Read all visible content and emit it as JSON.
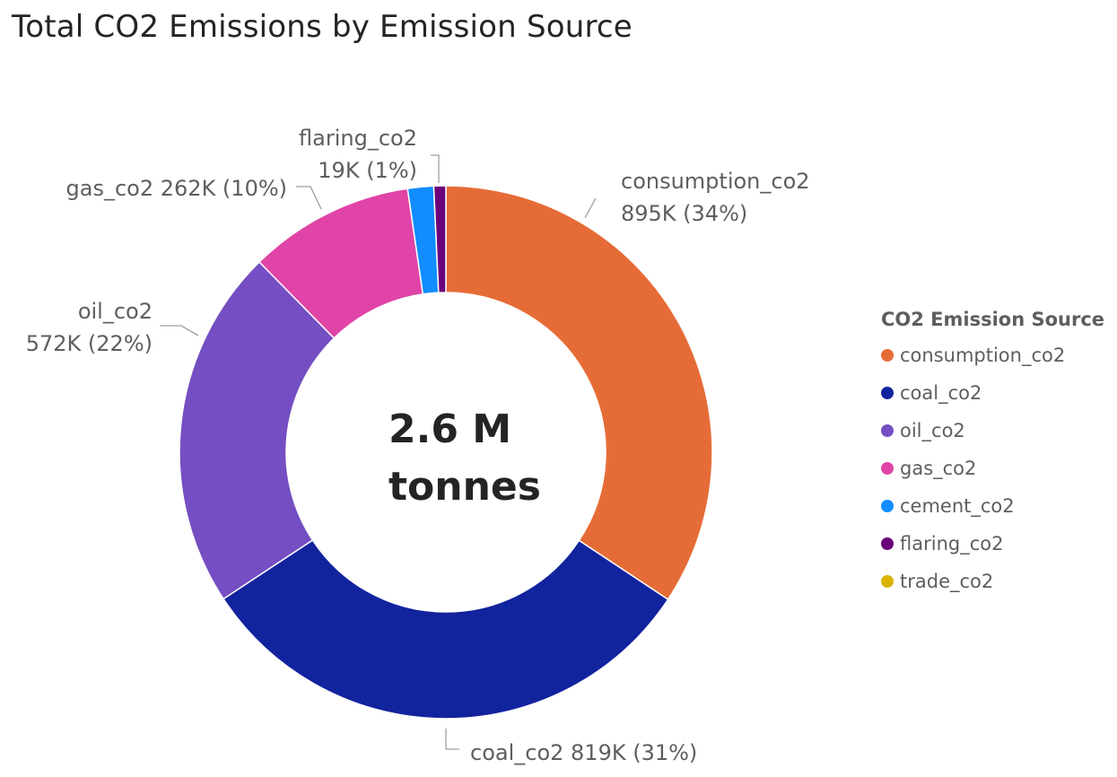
{
  "chart_data": {
    "type": "donut",
    "title": "Total CO2 Emissions by Emission Source",
    "center_label": [
      "2.6 M",
      "tonnes"
    ],
    "legend_title": "CO2 Emission Source",
    "legend_position": "right",
    "slices": [
      {
        "name": "consumption_co2",
        "value": 895,
        "display": "895K",
        "percent": "34%",
        "color": "#E66C37"
      },
      {
        "name": "coal_co2",
        "value": 819,
        "display": "819K",
        "percent": "31%",
        "color": "#12239E"
      },
      {
        "name": "oil_co2",
        "value": 572,
        "display": "572K",
        "percent": "22%",
        "color": "#744EC2"
      },
      {
        "name": "gas_co2",
        "value": 262,
        "display": "262K",
        "percent": "10%",
        "color": "#E044A7"
      },
      {
        "name": "cement_co2",
        "value": 41,
        "display": "",
        "percent": "",
        "color": "#118DFF"
      },
      {
        "name": "flaring_co2",
        "value": 19,
        "display": "19K",
        "percent": "1%",
        "color": "#6B007B"
      },
      {
        "name": "trade_co2",
        "value": 0,
        "display": "",
        "percent": "",
        "color": "#D9B300"
      }
    ],
    "labels": [
      {
        "slice": "consumption_co2",
        "lines": [
          "consumption_co2",
          "895K (34%)"
        ]
      },
      {
        "slice": "coal_co2",
        "lines": [
          "coal_co2 819K (31%)"
        ]
      },
      {
        "slice": "oil_co2",
        "lines": [
          "oil_co2",
          "572K (22%)"
        ]
      },
      {
        "slice": "gas_co2",
        "lines": [
          "gas_co2 262K (10%)"
        ]
      },
      {
        "slice": "flaring_co2",
        "lines": [
          "flaring_co2",
          "19K (1%)"
        ]
      }
    ]
  }
}
